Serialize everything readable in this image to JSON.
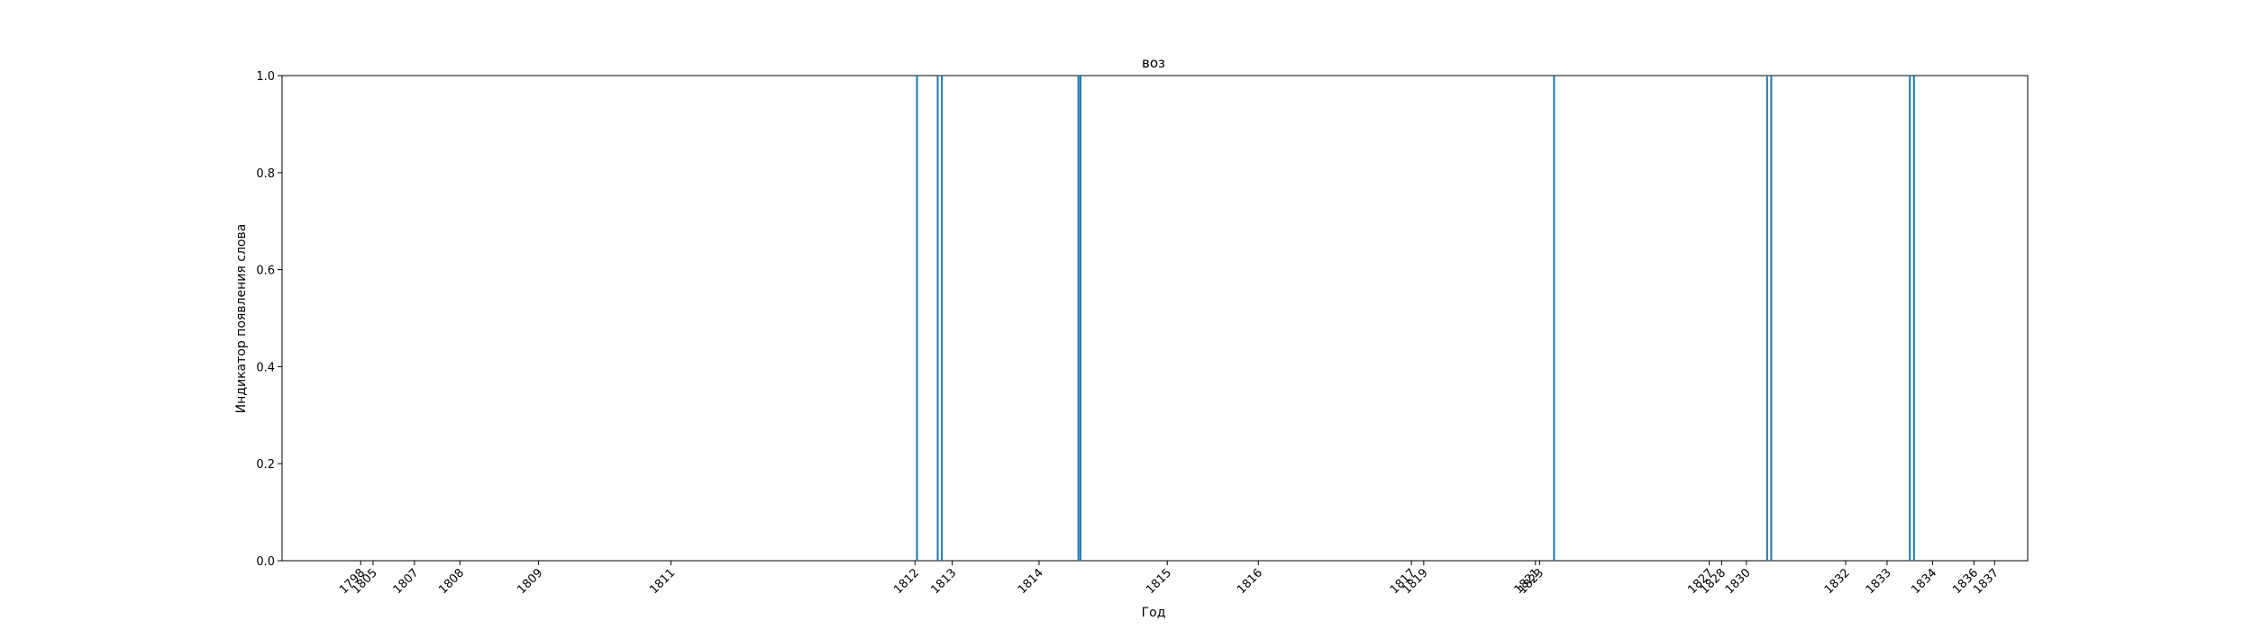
{
  "chart_data": {
    "type": "bar",
    "title": "воз",
    "xlabel": "Год",
    "ylabel": "Индикатор появления слова",
    "ylim": [
      0,
      1.0
    ],
    "xlim": [
      1797.2,
      1839.4
    ],
    "grid": false,
    "y_ticks": [
      0.0,
      0.2,
      0.4,
      0.6,
      0.8,
      1.0
    ],
    "y_tick_labels": [
      "0.0",
      "0.2",
      "0.4",
      "0.6",
      "0.8",
      "1.0"
    ],
    "x_ticks": [
      1799.1,
      1799.4,
      1800.4,
      1801.5,
      1803.4,
      1806.6,
      1812.5,
      1813.4,
      1815.5,
      1818.6,
      1820.8,
      1824.5,
      1824.8,
      1827.5,
      1827.6,
      1831.7,
      1832.0,
      1832.6,
      1835.0,
      1836.0,
      1837.1,
      1838.1,
      1838.6
    ],
    "x_tick_labels": [
      "1798",
      "1805",
      "1807",
      "1808",
      "1809",
      "1811",
      "1812",
      "1813",
      "1814",
      "1815",
      "1816",
      "1817",
      "1819",
      "1821",
      "1823",
      "1827",
      "1828",
      "1830",
      "1832",
      "1833",
      "1834",
      "1836",
      "1837"
    ],
    "color": "#1f77b4",
    "x": [
      1812.55,
      1813.05,
      1813.15,
      1816.45,
      1816.5,
      1827.95,
      1833.1,
      1833.2,
      1836.55,
      1836.65
    ],
    "values": [
      1,
      1,
      1,
      1,
      1,
      1,
      1,
      1,
      1,
      1
    ]
  }
}
